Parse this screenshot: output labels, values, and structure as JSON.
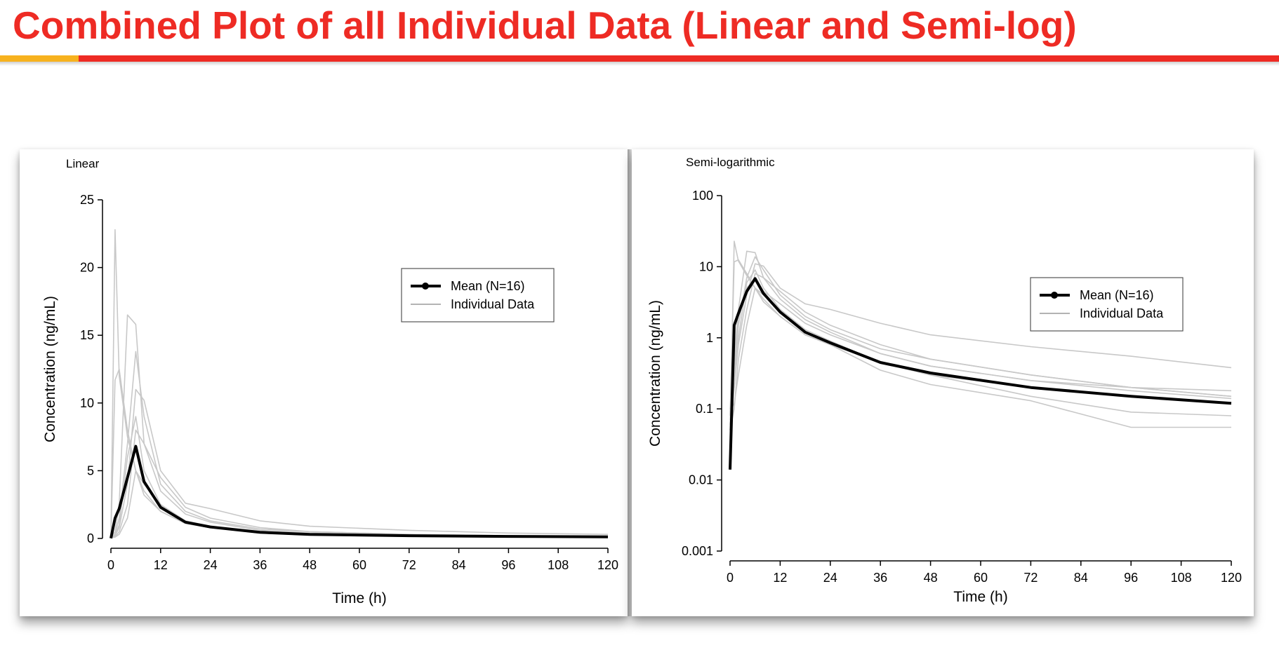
{
  "slide": {
    "title": "Combined Plot of all Individual Data (Linear and Semi-log)"
  },
  "colors": {
    "title": "#ee2b24",
    "accent": "#f7b21e",
    "mean_line": "#000000",
    "individual_line": "#c8c8c8"
  },
  "chart_data": [
    {
      "type": "line",
      "panel_label": "Linear",
      "xlabel": "Time (h)",
      "ylabel": "Concentration (ng/mL)",
      "xlim": [
        0,
        120
      ],
      "ylim": [
        0,
        25
      ],
      "yscale": "linear",
      "x_ticks": [
        0,
        12,
        24,
        36,
        48,
        60,
        72,
        84,
        96,
        108,
        120
      ],
      "y_ticks": [
        0,
        5,
        10,
        15,
        20,
        25
      ],
      "y_tick_labels": [
        "0",
        "5",
        "10",
        "15",
        "20",
        "25"
      ],
      "grid": false,
      "legend": {
        "placement": "upper-right",
        "entries": [
          "Mean (N=16)",
          "Individual Data"
        ]
      },
      "series": [
        {
          "name": "Mean (N=16)",
          "x": [
            0,
            1,
            2,
            4,
            6,
            8,
            12,
            18,
            24,
            36,
            48,
            72,
            96,
            120
          ],
          "values": [
            0.01,
            1.5,
            2.2,
            4.5,
            6.8,
            4.2,
            2.3,
            1.2,
            0.85,
            0.45,
            0.3,
            0.2,
            0.15,
            0.12
          ]
        },
        {
          "name": "Individual Data",
          "x": [
            0,
            1,
            2,
            4,
            6,
            8,
            12,
            18,
            24,
            36,
            48,
            72,
            96,
            120
          ],
          "values": [
            0.05,
            22.8,
            12.0,
            7.5,
            5.0,
            3.5,
            2.0,
            1.1,
            0.8,
            0.45,
            0.3,
            0.2,
            0.15,
            0.12
          ]
        },
        {
          "name": "Individual Data",
          "x": [
            0,
            1,
            2,
            4,
            6,
            8,
            12,
            18,
            24,
            36,
            48,
            72,
            96,
            120
          ],
          "values": [
            0.05,
            11.7,
            12.5,
            8.0,
            5.0,
            3.2,
            2.0,
            1.1,
            0.8,
            0.45,
            0.3,
            0.2,
            0.15,
            0.12
          ]
        },
        {
          "name": "Individual Data",
          "x": [
            0,
            1,
            2,
            4,
            6,
            8,
            12,
            18,
            24,
            36,
            48,
            72,
            96,
            120
          ],
          "values": [
            0.05,
            0.5,
            2.5,
            16.5,
            15.8,
            7.0,
            3.5,
            1.8,
            1.2,
            0.6,
            0.4,
            0.25,
            0.18,
            0.14
          ]
        },
        {
          "name": "Individual Data",
          "x": [
            0,
            1,
            2,
            4,
            6,
            8,
            12,
            18,
            24,
            36,
            48,
            72,
            96,
            120
          ],
          "values": [
            0.05,
            0.3,
            1.5,
            7.0,
            13.8,
            9.0,
            4.0,
            2.0,
            1.3,
            0.7,
            0.5,
            0.3,
            0.2,
            0.15
          ]
        },
        {
          "name": "Individual Data",
          "x": [
            0,
            1,
            2,
            4,
            6,
            8,
            12,
            18,
            24,
            36,
            48,
            72,
            96,
            120
          ],
          "values": [
            0.05,
            0.2,
            0.8,
            4.0,
            11.0,
            10.2,
            5.0,
            2.6,
            2.2,
            1.3,
            0.9,
            0.6,
            0.4,
            0.3
          ]
        },
        {
          "name": "Individual Data",
          "x": [
            0,
            1,
            2,
            4,
            6,
            8,
            12,
            18,
            24,
            36,
            48,
            72,
            96,
            120
          ],
          "values": [
            0.05,
            0.1,
            0.5,
            2.5,
            8.0,
            7.0,
            4.5,
            2.3,
            1.5,
            0.8,
            0.5,
            0.3,
            0.2,
            0.15
          ]
        },
        {
          "name": "Individual Data",
          "x": [
            0,
            1,
            2,
            4,
            6,
            8,
            12,
            18,
            24,
            36,
            48,
            72,
            96,
            120
          ],
          "values": [
            0.05,
            0.1,
            0.3,
            1.5,
            5.0,
            4.0,
            2.5,
            1.3,
            0.9,
            0.45,
            0.3,
            0.15,
            0.1,
            0.08
          ]
        },
        {
          "name": "Individual Data",
          "x": [
            0,
            1,
            2,
            4,
            6,
            8,
            12,
            18,
            24,
            36,
            48,
            72,
            96,
            120
          ],
          "values": [
            0.05,
            0.2,
            1.0,
            6.0,
            9.0,
            5.0,
            2.5,
            1.2,
            0.8,
            0.4,
            0.25,
            0.15,
            0.1,
            0.08
          ]
        }
      ]
    },
    {
      "type": "line",
      "panel_label": "Semi-logarithmic",
      "xlabel": "Time (h)",
      "ylabel": "Concentration (ng/mL)",
      "xlim": [
        0,
        120
      ],
      "ylim": [
        0.001,
        100
      ],
      "yscale": "log",
      "x_ticks": [
        0,
        12,
        24,
        36,
        48,
        60,
        72,
        84,
        96,
        108,
        120
      ],
      "y_ticks": [
        0.001,
        0.01,
        0.1,
        1,
        10,
        100
      ],
      "y_tick_labels": [
        "0.001",
        "0.01",
        "0.1",
        "1",
        "10",
        "100"
      ],
      "grid": false,
      "legend": {
        "placement": "upper-right",
        "entries": [
          "Mean (N=16)",
          "Individual Data"
        ]
      },
      "series": [
        {
          "name": "Mean (N=16)",
          "x": [
            0,
            1,
            2,
            4,
            6,
            8,
            12,
            18,
            24,
            36,
            48,
            72,
            96,
            120
          ],
          "values": [
            0.014,
            1.5,
            2.2,
            4.5,
            6.8,
            4.2,
            2.3,
            1.2,
            0.85,
            0.45,
            0.32,
            0.2,
            0.15,
            0.12
          ]
        },
        {
          "name": "Individual Data",
          "x": [
            0,
            1,
            2,
            4,
            6,
            8,
            12,
            18,
            24,
            36,
            48,
            72,
            96,
            120
          ],
          "values": [
            0.05,
            22.8,
            12.0,
            7.5,
            5.0,
            3.5,
            2.0,
            1.1,
            0.8,
            0.45,
            0.3,
            0.2,
            0.15,
            0.12
          ]
        },
        {
          "name": "Individual Data",
          "x": [
            0,
            1,
            2,
            4,
            6,
            8,
            12,
            18,
            24,
            36,
            48,
            72,
            96,
            120
          ],
          "values": [
            0.08,
            11.7,
            12.5,
            8.0,
            5.0,
            3.2,
            2.0,
            1.1,
            0.8,
            0.45,
            0.3,
            0.2,
            0.15,
            0.12
          ]
        },
        {
          "name": "Individual Data",
          "x": [
            0,
            1,
            2,
            4,
            6,
            8,
            12,
            18,
            24,
            36,
            48,
            72,
            96,
            120
          ],
          "values": [
            0.06,
            0.5,
            2.5,
            16.5,
            15.8,
            7.0,
            3.5,
            1.8,
            1.2,
            0.6,
            0.4,
            0.25,
            0.18,
            0.14
          ]
        },
        {
          "name": "Individual Data",
          "x": [
            0,
            1,
            2,
            4,
            6,
            8,
            12,
            18,
            24,
            36,
            48,
            72,
            96,
            120
          ],
          "values": [
            0.1,
            0.3,
            1.5,
            7.0,
            13.8,
            9.0,
            4.0,
            2.0,
            1.3,
            0.7,
            0.5,
            0.3,
            0.2,
            0.15
          ]
        },
        {
          "name": "Individual Data",
          "x": [
            0,
            1,
            2,
            4,
            6,
            8,
            12,
            18,
            24,
            36,
            48,
            72,
            96,
            120
          ],
          "values": [
            0.07,
            0.2,
            0.8,
            4.0,
            11.0,
            10.2,
            5.0,
            3.0,
            2.5,
            1.6,
            1.1,
            0.75,
            0.55,
            0.38
          ]
        },
        {
          "name": "Individual Data",
          "x": [
            0,
            1,
            2,
            4,
            6,
            8,
            12,
            18,
            24,
            36,
            48,
            72,
            96,
            120
          ],
          "values": [
            0.05,
            0.1,
            0.5,
            2.5,
            8.0,
            7.0,
            4.5,
            2.3,
            1.5,
            0.8,
            0.5,
            0.3,
            0.2,
            0.15
          ]
        },
        {
          "name": "Individual Data",
          "x": [
            0,
            1,
            2,
            4,
            6,
            8,
            12,
            18,
            24,
            36,
            48,
            72,
            96,
            120
          ],
          "values": [
            0.09,
            0.12,
            0.3,
            1.5,
            5.0,
            4.0,
            2.5,
            1.3,
            0.9,
            0.45,
            0.3,
            0.15,
            0.09,
            0.08
          ]
        },
        {
          "name": "Individual Data",
          "x": [
            0,
            1,
            2,
            4,
            6,
            8,
            12,
            18,
            24,
            36,
            48,
            72,
            96,
            120
          ],
          "values": [
            0.05,
            0.2,
            1.0,
            6.0,
            9.0,
            5.0,
            2.5,
            1.2,
            0.8,
            0.35,
            0.22,
            0.13,
            0.055,
            0.055
          ]
        },
        {
          "name": "Individual Data",
          "x": [
            0,
            1,
            2,
            4,
            6,
            8,
            12,
            18,
            24,
            36,
            48,
            72,
            96,
            120
          ],
          "values": [
            0.06,
            0.4,
            2.0,
            5.0,
            7.0,
            4.5,
            3.0,
            1.6,
            1.1,
            0.6,
            0.4,
            0.25,
            0.2,
            0.18
          ]
        }
      ]
    }
  ]
}
